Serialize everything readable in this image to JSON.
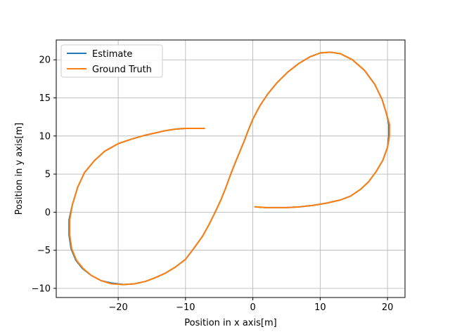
{
  "chart_data": {
    "type": "line",
    "xlabel": "Position in x axis[m]",
    "ylabel": "Position in y axis[m]",
    "xlim": [
      -29.2,
      22.6
    ],
    "ylim": [
      -11.2,
      22.6
    ],
    "xticks": [
      -20,
      -10,
      0,
      10,
      20
    ],
    "yticks": [
      -10,
      -5,
      0,
      5,
      10,
      15,
      20
    ],
    "xtick_labels": [
      "−20",
      "−10",
      "0",
      "10",
      "20"
    ],
    "ytick_labels": [
      "−10",
      "−5",
      "0",
      "5",
      "10",
      "15",
      "20"
    ],
    "grid": true,
    "legend_position": "top-left",
    "series": [
      {
        "name": "Estimate",
        "color": "#1f77b4",
        "x": [
          -7.2,
          -9.0,
          -10.0,
          -11.5,
          -13.0,
          -14.5,
          -16.0,
          -18.0,
          -20.0,
          -22.0,
          -23.5,
          -25.0,
          -26.0,
          -26.8,
          -27.3,
          -27.3,
          -27.0,
          -26.3,
          -25.3,
          -24.0,
          -22.5,
          -21.0,
          -19.2,
          -17.6,
          -16.0,
          -14.5,
          -13.0,
          -11.5,
          -10.0,
          -8.8,
          -7.5,
          -6.5,
          -5.6,
          -4.8,
          -4.1,
          -3.4,
          -2.7,
          -2.0,
          -1.3,
          -0.7,
          0.0,
          1.0,
          2.2,
          3.6,
          5.2,
          6.8,
          8.5,
          10.0,
          11.5,
          13.0,
          14.8,
          16.6,
          18.1,
          19.2,
          19.9,
          20.2,
          20.2,
          20.0,
          19.3,
          18.3,
          17.2,
          16.0,
          14.5,
          13.0,
          11.0,
          9.0,
          7.0,
          5.0,
          3.5,
          2.0,
          0.3
        ],
        "y": [
          11.0,
          11.0,
          11.0,
          10.9,
          10.7,
          10.4,
          10.1,
          9.6,
          9.0,
          8.0,
          6.8,
          5.2,
          3.3,
          1.0,
          -1.0,
          -3.0,
          -4.8,
          -6.3,
          -7.4,
          -8.3,
          -9.0,
          -9.3,
          -9.5,
          -9.4,
          -9.1,
          -8.6,
          -8.0,
          -7.2,
          -6.2,
          -4.8,
          -3.2,
          -1.6,
          0.0,
          1.5,
          3.0,
          4.7,
          6.3,
          7.8,
          9.3,
          10.7,
          12.2,
          13.9,
          15.5,
          17.0,
          18.4,
          19.5,
          20.4,
          20.9,
          21.0,
          20.8,
          20.0,
          18.6,
          16.8,
          14.8,
          12.8,
          11.5,
          10.0,
          8.5,
          6.8,
          5.3,
          4.0,
          3.0,
          2.1,
          1.6,
          1.2,
          0.9,
          0.7,
          0.6,
          0.6,
          0.6,
          0.7
        ]
      },
      {
        "name": "Ground Truth",
        "color": "#ff7f0e",
        "x": [
          -7.2,
          -9.0,
          -10.0,
          -11.5,
          -13.0,
          -14.5,
          -16.0,
          -18.0,
          -20.0,
          -22.0,
          -23.5,
          -25.0,
          -26.0,
          -26.8,
          -27.2,
          -27.2,
          -26.9,
          -26.2,
          -25.2,
          -24.0,
          -22.5,
          -21.0,
          -19.2,
          -17.6,
          -16.0,
          -14.5,
          -13.0,
          -11.5,
          -10.0,
          -8.8,
          -7.5,
          -6.5,
          -5.6,
          -4.8,
          -4.1,
          -3.4,
          -2.7,
          -2.0,
          -1.3,
          -0.7,
          0.0,
          1.0,
          2.2,
          3.6,
          5.2,
          6.8,
          8.5,
          10.0,
          11.5,
          13.0,
          14.8,
          16.6,
          18.1,
          19.2,
          19.9,
          20.3,
          20.3,
          20.0,
          19.3,
          18.3,
          17.2,
          16.0,
          14.5,
          13.0,
          11.0,
          9.0,
          7.0,
          5.0,
          3.5,
          2.0,
          0.3
        ],
        "y": [
          11.0,
          11.0,
          11.0,
          10.9,
          10.7,
          10.4,
          10.1,
          9.6,
          9.0,
          8.0,
          6.8,
          5.2,
          3.3,
          1.0,
          -1.0,
          -3.0,
          -4.8,
          -6.3,
          -7.4,
          -8.3,
          -9.0,
          -9.4,
          -9.5,
          -9.4,
          -9.1,
          -8.6,
          -8.0,
          -7.2,
          -6.2,
          -4.8,
          -3.2,
          -1.6,
          0.0,
          1.5,
          3.0,
          4.7,
          6.3,
          7.8,
          9.3,
          10.7,
          12.2,
          13.9,
          15.5,
          17.0,
          18.4,
          19.5,
          20.4,
          20.9,
          21.0,
          20.8,
          20.0,
          18.6,
          16.8,
          14.8,
          12.8,
          11.5,
          10.0,
          8.5,
          6.8,
          5.3,
          4.0,
          3.0,
          2.1,
          1.6,
          1.2,
          0.9,
          0.7,
          0.6,
          0.6,
          0.6,
          0.7
        ]
      }
    ]
  }
}
